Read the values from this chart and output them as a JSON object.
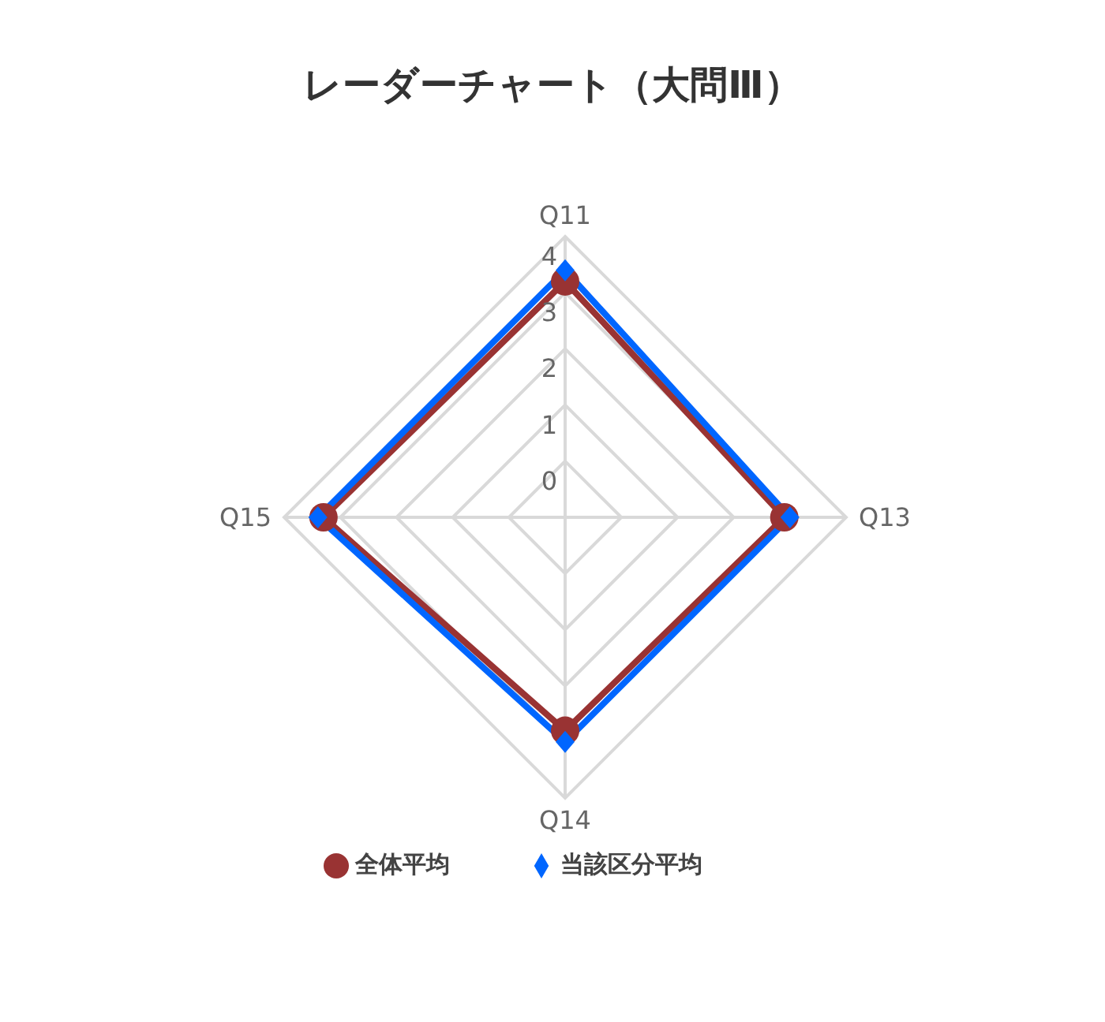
{
  "chart_data": {
    "type": "radar",
    "title": "レーダーチャート（大問Ⅲ）",
    "categories": [
      "Q11",
      "Q13",
      "Q14",
      "Q15"
    ],
    "ylim": [
      -1,
      4
    ],
    "yticks": [
      0,
      1,
      2,
      3,
      4
    ],
    "grid": true,
    "legend": "bottom",
    "series": [
      {
        "name": "全体平均",
        "color": "#993333",
        "marker": "circle",
        "values": [
          3.2,
          2.9,
          2.8,
          3.3
        ]
      },
      {
        "name": "当該区分平均",
        "color": "#0066ff",
        "marker": "diamond",
        "values": [
          3.4,
          3.0,
          3.0,
          3.4
        ]
      }
    ]
  }
}
